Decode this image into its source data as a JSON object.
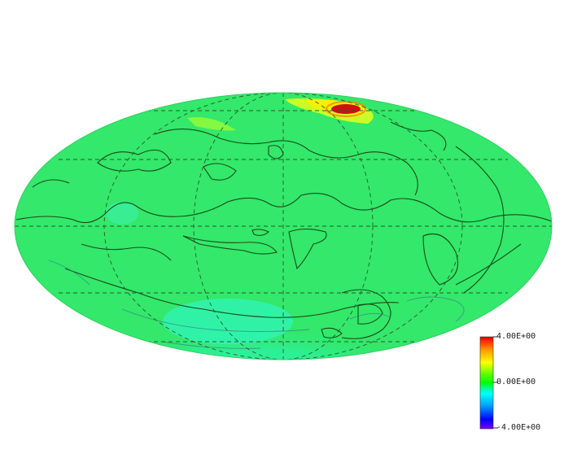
{
  "map": {
    "projection": "Hammer-Aitoff (full sky)",
    "colormap": "blue-cyan-green-yellow-red",
    "colorbar": {
      "max_label": "4.00E+00",
      "mid_label": "0.00E+00",
      "min_label": "-4.00E+00",
      "range": [
        -4.0,
        4.0
      ],
      "colors": [
        "#7a00ff",
        "#0000ff",
        "#00a0ff",
        "#00ffff",
        "#00ff80",
        "#00ff00",
        "#60ff00",
        "#ffff00",
        "#ffa000",
        "#ff3000",
        "#e00000"
      ]
    },
    "base_color": "#33e86a"
  }
}
